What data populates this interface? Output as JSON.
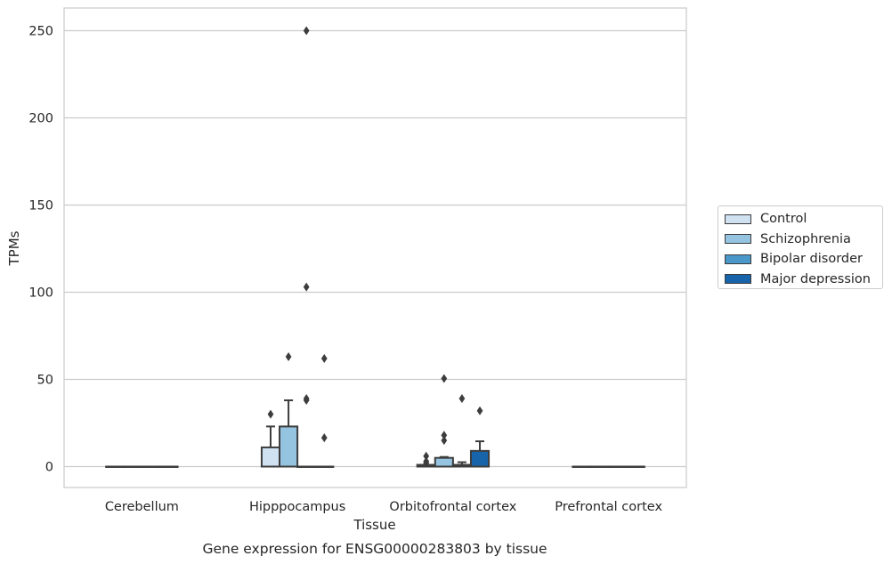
{
  "chart_data": {
    "type": "box",
    "caption": "Gene expression for ENSG00000283803 by tissue",
    "xlabel": "Tissue",
    "ylabel": "TPMs",
    "ylim": [
      -12,
      263
    ],
    "yticks": [
      0,
      50,
      100,
      150,
      200,
      250
    ],
    "grid": true,
    "legend_position": "right",
    "categories": [
      "Cerebellum",
      "Hipppocampus",
      "Orbitofrontal cortex",
      "Prefrontal cortex"
    ],
    "series": [
      {
        "name": "Control",
        "color": "#d0e1f2",
        "boxes": [
          {
            "q1": 0,
            "median": 0,
            "q3": 0,
            "whisker_low": 0,
            "whisker_high": 0,
            "outliers": []
          },
          {
            "q1": 0,
            "median": 0,
            "q3": 11,
            "whisker_low": 0,
            "whisker_high": 23,
            "outliers": [
              30
            ]
          },
          {
            "q1": 0,
            "median": 0,
            "q3": 1,
            "whisker_low": 0,
            "whisker_high": 1,
            "outliers": [
              2,
              3,
              6
            ]
          },
          {
            "q1": 0,
            "median": 0,
            "q3": 0,
            "whisker_low": 0,
            "whisker_high": 0,
            "outliers": []
          }
        ]
      },
      {
        "name": "Schizophrenia",
        "color": "#94c4df",
        "boxes": [
          {
            "q1": 0,
            "median": 0,
            "q3": 0,
            "whisker_low": 0,
            "whisker_high": 0,
            "outliers": []
          },
          {
            "q1": 0,
            "median": 0,
            "q3": 23,
            "whisker_low": 0,
            "whisker_high": 38,
            "outliers": [
              63
            ]
          },
          {
            "q1": 0,
            "median": 0,
            "q3": 5,
            "whisker_low": 0,
            "whisker_high": 5.5,
            "outliers": [
              15,
              18,
              50.5
            ]
          },
          {
            "q1": 0,
            "median": 0,
            "q3": 0,
            "whisker_low": 0,
            "whisker_high": 0,
            "outliers": []
          }
        ]
      },
      {
        "name": "Bipolar disorder",
        "color": "#4a98c9",
        "boxes": [
          {
            "q1": 0,
            "median": 0,
            "q3": 0,
            "whisker_low": 0,
            "whisker_high": 0,
            "outliers": []
          },
          {
            "q1": 0,
            "median": 0,
            "q3": 0,
            "whisker_low": 0,
            "whisker_high": 0,
            "outliers": [
              38,
              39,
              103,
              250
            ]
          },
          {
            "q1": 0,
            "median": 0,
            "q3": 1,
            "whisker_low": 0,
            "whisker_high": 2.5,
            "outliers": [
              39
            ]
          },
          {
            "q1": 0,
            "median": 0,
            "q3": 0,
            "whisker_low": 0,
            "whisker_high": 0,
            "outliers": []
          }
        ]
      },
      {
        "name": "Major depression",
        "color": "#1764ab",
        "boxes": [
          {
            "q1": 0,
            "median": 0,
            "q3": 0,
            "whisker_low": 0,
            "whisker_high": 0,
            "outliers": []
          },
          {
            "q1": 0,
            "median": 0,
            "q3": 0,
            "whisker_low": 0,
            "whisker_high": 0,
            "outliers": [
              16.5,
              62
            ]
          },
          {
            "q1": 0,
            "median": 0,
            "q3": 9,
            "whisker_low": 0,
            "whisker_high": 14.5,
            "outliers": [
              32
            ]
          },
          {
            "q1": 0,
            "median": 0,
            "q3": 0,
            "whisker_low": 0,
            "whisker_high": 0,
            "outliers": []
          }
        ]
      }
    ]
  }
}
